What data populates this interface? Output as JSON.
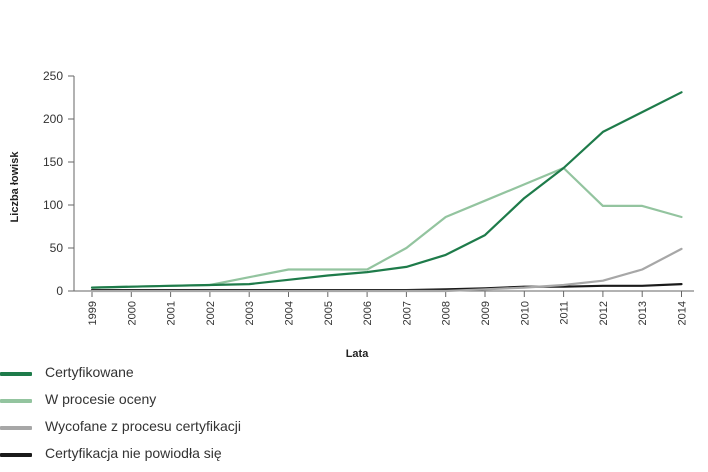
{
  "chart_data": {
    "type": "line",
    "title": "",
    "xlabel": "Lata",
    "ylabel": "Liczba łowisk",
    "x": [
      "1999",
      "2000",
      "2001",
      "2002",
      "2003",
      "2004",
      "2005",
      "2006",
      "2007",
      "2008",
      "2009",
      "2010",
      "2011",
      "2012",
      "2013",
      "2014"
    ],
    "yticks": [
      "0",
      "50",
      "100",
      "150",
      "200",
      "250"
    ],
    "ylim": [
      0,
      250
    ],
    "grid": false,
    "legend_position": "bottom-left",
    "series": [
      {
        "name": "Certyfikowane",
        "color": "#1e7b4a",
        "values": [
          4,
          5,
          6,
          7,
          8,
          13,
          18,
          22,
          28,
          42,
          65,
          108,
          143,
          185,
          208,
          231
        ]
      },
      {
        "name": "W procesie oceny",
        "color": "#93c49f",
        "values": [
          4,
          5,
          6,
          7,
          16,
          25,
          25,
          25,
          50,
          86,
          105,
          124,
          143,
          99,
          99,
          86
        ]
      },
      {
        "name": "Wycofane z procesu certyfikacji",
        "color": "#a7a7a7",
        "values": [
          0,
          0,
          0,
          0,
          0,
          0,
          0,
          0,
          0,
          0,
          2,
          4,
          7,
          12,
          25,
          49
        ]
      },
      {
        "name": "Certyfikacja nie powiodła się",
        "color": "#1a1a1a",
        "values": [
          1,
          1,
          1,
          1,
          1,
          1,
          1,
          1,
          1,
          2,
          3,
          5,
          5,
          6,
          6,
          8
        ]
      }
    ]
  }
}
